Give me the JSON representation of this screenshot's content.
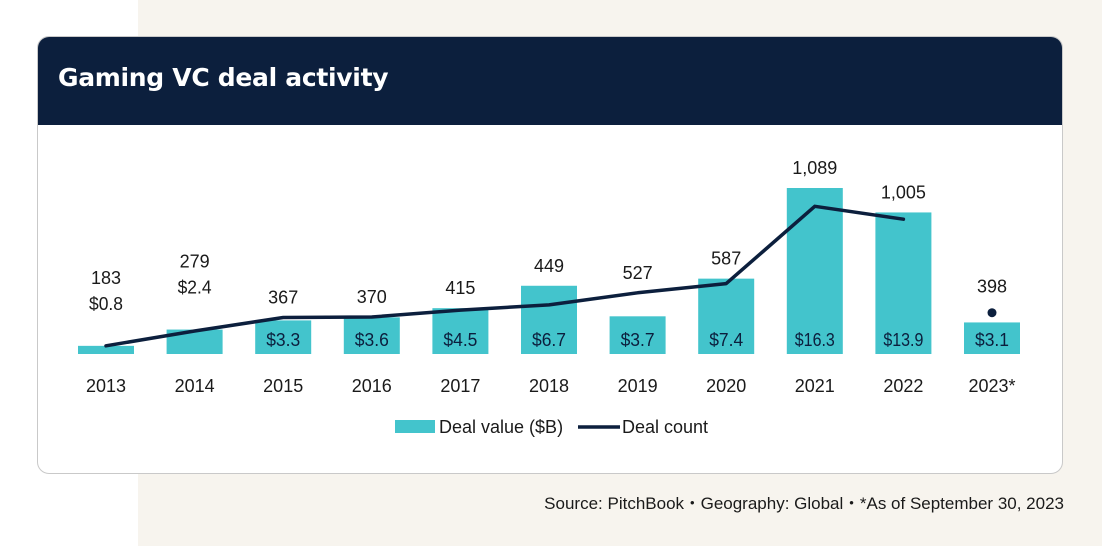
{
  "title": "Gaming VC deal activity",
  "source": {
    "parts": [
      "Source: PitchBook",
      "Geography: Global",
      "*As of September 30, 2023"
    ]
  },
  "colors": {
    "header_bg": "#0c1f3d",
    "bar": "#43c4cc",
    "line": "#0c1f3d",
    "page_bg": "#f7f4ee"
  },
  "chart_data": {
    "type": "bar",
    "categories": [
      "2013",
      "2014",
      "2015",
      "2016",
      "2017",
      "2018",
      "2019",
      "2020",
      "2021",
      "2022",
      "2023*"
    ],
    "series": [
      {
        "name": "Deal value ($B)",
        "type": "bar",
        "values": [
          0.8,
          2.4,
          3.3,
          3.6,
          4.5,
          6.7,
          3.7,
          7.4,
          16.3,
          13.9,
          3.1
        ],
        "labels": [
          "$0.8",
          "$2.4",
          "$3.3",
          "$3.6",
          "$4.5",
          "$6.7",
          "$3.7",
          "$7.4",
          "$16.3",
          "$13.9",
          "$3.1"
        ]
      },
      {
        "name": "Deal count",
        "type": "line",
        "values": [
          183,
          279,
          367,
          370,
          415,
          449,
          527,
          587,
          1089,
          1005,
          398
        ],
        "labels": [
          "183",
          "279",
          "367",
          "370",
          "415",
          "449",
          "527",
          "587",
          "1,089",
          "1,005",
          "398"
        ],
        "last_point_separate": true
      }
    ],
    "legend": {
      "position": "bottom"
    },
    "grid": false
  }
}
